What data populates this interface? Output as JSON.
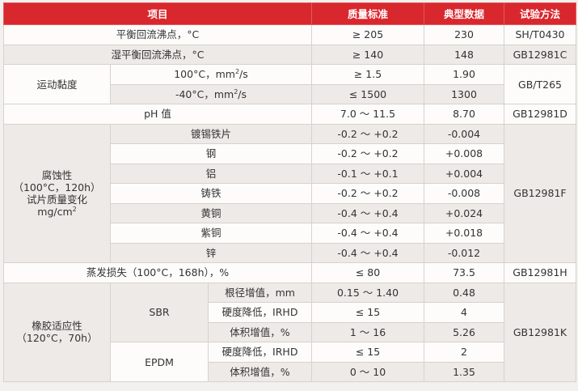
{
  "headers": [
    "项目",
    "质量标准",
    "典型数据",
    "试验方法"
  ],
  "rows": {
    "r1": {
      "item": "平衡回流沸点，°C",
      "std": "≥ 205",
      "typ": "230",
      "method": "SH/T0430"
    },
    "r2": {
      "item": "湿平衡回流沸点，°C",
      "std": "≥ 140",
      "typ": "148",
      "method": "GB12981C"
    },
    "viscosity": {
      "label": "运动黏度",
      "method": "GB/T265",
      "a": {
        "sub_pre": "100°C，mm",
        "sub_post": "/s",
        "std": "≥ 1.5",
        "typ": "1.90"
      },
      "b": {
        "sub_pre": "-40°C，mm",
        "sub_post": "/s",
        "std": "≤ 1500",
        "typ": "1300"
      }
    },
    "ph": {
      "item": "pH 值",
      "std": "7.0 ～ 11.5",
      "typ": "8.70",
      "method": "GB12981D"
    },
    "corrosion": {
      "label_1": "腐蚀性",
      "label_2": "（100°C，120h）",
      "label_3": "试片质量变化",
      "label_4": "mg/cm",
      "method": "GB12981F",
      "items": [
        {
          "name": "镀锡铁片",
          "std": "-0.2 ～ +0.2",
          "typ": "-0.004"
        },
        {
          "name": "钢",
          "std": "-0.2 ～ +0.2",
          "typ": "+0.008"
        },
        {
          "name": "铝",
          "std": "-0.1 ～ +0.1",
          "typ": "+0.004"
        },
        {
          "name": "铸铁",
          "std": "-0.2 ～ +0.2",
          "typ": "-0.008"
        },
        {
          "name": "黄铜",
          "std": "-0.4 ～ +0.4",
          "typ": "+0.024"
        },
        {
          "name": "紫铜",
          "std": "-0.4 ～ +0.4",
          "typ": "+0.018"
        },
        {
          "name": "锌",
          "std": "-0.4 ～ +0.4",
          "typ": "-0.012"
        }
      ]
    },
    "evap": {
      "item": "蒸发损失（100°C，168h），%",
      "std": "≤ 80",
      "typ": "73.5",
      "method": "GB12981H"
    },
    "rubber": {
      "label_1": "橡胶适应性",
      "label_2": "（120°C，70h）",
      "method": "GB12981K",
      "sbr": {
        "label": "SBR",
        "items": [
          {
            "name": "根径增值，mm",
            "std": "0.15 ～ 1.40",
            "typ": "0.48"
          },
          {
            "name": "硬度降低，IRHD",
            "std": "≤ 15",
            "typ": "4"
          },
          {
            "name": "体积增值，%",
            "std": "1 ～ 16",
            "typ": "5.26"
          }
        ]
      },
      "epdm": {
        "label": "EPDM",
        "items": [
          {
            "name": "硬度降低，IRHD",
            "std": "≤ 15",
            "typ": "2"
          },
          {
            "name": "体积增值，%",
            "std": "0 ～ 10",
            "typ": "1.35"
          }
        ]
      }
    }
  },
  "superscript_2": "2"
}
